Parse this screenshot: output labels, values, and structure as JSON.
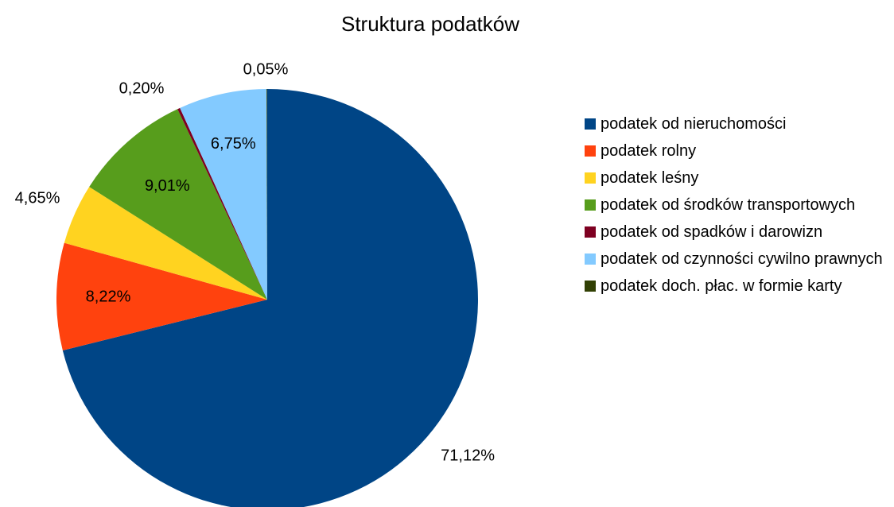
{
  "chart_data": {
    "type": "pie",
    "title": "Struktura podatków",
    "categories": [
      "podatek od nieruchomości",
      "podatek rolny",
      "podatek leśny",
      "podatek od środków transpor­towych",
      "podatek od spadków i darowizn",
      "podatek od czynności cywilno prawnych",
      "podatek doch. płac. w formie karty"
    ],
    "values": [
      71.12,
      8.22,
      4.65,
      9.01,
      0.2,
      6.75,
      0.05
    ],
    "value_labels": [
      "71,12%",
      "8,22%",
      "4,65%",
      "9,01%",
      "0,20%",
      "6,75%",
      "0,05%"
    ],
    "colors": [
      "#004586",
      "#ff420e",
      "#ffd320",
      "#579d1c",
      "#7e0021",
      "#83caff",
      "#314004"
    ],
    "legend": "right"
  }
}
